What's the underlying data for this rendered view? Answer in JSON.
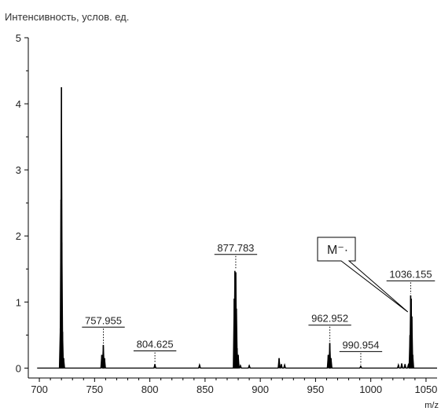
{
  "chart_data": {
    "type": "line",
    "ylabel": "Интенсивность, услов. ед.",
    "xlabel": "m/z",
    "xlim": [
      690,
      1060
    ],
    "ylim": [
      -0.15,
      5
    ],
    "xticks": [
      700,
      750,
      800,
      850,
      900,
      950,
      1000,
      1050
    ],
    "yticks": [
      0,
      1,
      2,
      3,
      4,
      5
    ],
    "grid": false,
    "peaks": [
      {
        "x": 719.0,
        "y": 0.6
      },
      {
        "x": 719.6,
        "y": 2.55
      },
      {
        "x": 720.0,
        "y": 4.25
      },
      {
        "x": 720.4,
        "y": 1.9
      },
      {
        "x": 721.0,
        "y": 0.55
      },
      {
        "x": 722.0,
        "y": 0.15
      },
      {
        "x": 756.5,
        "y": 0.2
      },
      {
        "x": 757.9,
        "y": 0.35
      },
      {
        "x": 759.0,
        "y": 0.15
      },
      {
        "x": 804.6,
        "y": 0.06
      },
      {
        "x": 845.0,
        "y": 0.05
      },
      {
        "x": 876.4,
        "y": 1.05
      },
      {
        "x": 877.0,
        "y": 1.47
      },
      {
        "x": 877.8,
        "y": 1.45
      },
      {
        "x": 878.4,
        "y": 0.9
      },
      {
        "x": 879.0,
        "y": 0.3
      },
      {
        "x": 880.0,
        "y": 0.2
      },
      {
        "x": 882.0,
        "y": 0.04
      },
      {
        "x": 890.0,
        "y": 0.04
      },
      {
        "x": 917.0,
        "y": 0.15
      },
      {
        "x": 919.0,
        "y": 0.06
      },
      {
        "x": 922.0,
        "y": 0.05
      },
      {
        "x": 961.5,
        "y": 0.2
      },
      {
        "x": 962.9,
        "y": 0.38
      },
      {
        "x": 964.0,
        "y": 0.15
      },
      {
        "x": 990.9,
        "y": 0.03
      },
      {
        "x": 1025.0,
        "y": 0.05
      },
      {
        "x": 1028.0,
        "y": 0.07
      },
      {
        "x": 1031.0,
        "y": 0.06
      },
      {
        "x": 1034.0,
        "y": 0.05
      },
      {
        "x": 1035.5,
        "y": 0.5
      },
      {
        "x": 1036.1,
        "y": 1.1
      },
      {
        "x": 1036.6,
        "y": 1.05
      },
      {
        "x": 1037.2,
        "y": 0.78
      },
      {
        "x": 1038.0,
        "y": 0.2
      }
    ],
    "peak_labels": [
      {
        "text": "757.955",
        "x": 757.955,
        "label_y": 0.62
      },
      {
        "text": "804.625",
        "x": 804.625,
        "label_y": 0.26
      },
      {
        "text": "877.783",
        "x": 877.783,
        "label_y": 1.72
      },
      {
        "text": "962.952",
        "x": 962.952,
        "label_y": 0.65
      },
      {
        "text": "990.954",
        "x": 990.954,
        "label_y": 0.25
      },
      {
        "text": "1036.155",
        "x": 1036.155,
        "label_y": 1.32
      }
    ],
    "annotations": [
      {
        "text": "M⁻·",
        "target_x": 1033.5,
        "target_y": 0.85
      }
    ]
  }
}
